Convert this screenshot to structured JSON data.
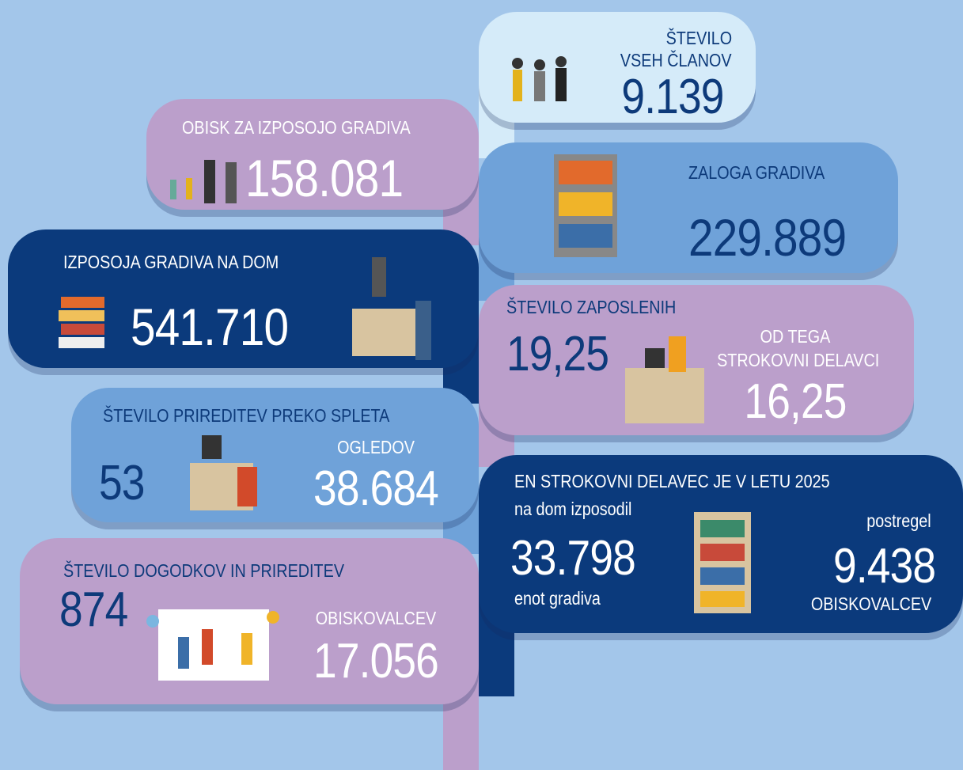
{
  "members": {
    "label_1": "ŠTEVILO",
    "label_2": "VSEH ČLANOV",
    "value": "9.139"
  },
  "visits": {
    "label": "OBISK ZA IZPOSOJO GRADIVA",
    "value": "158.081"
  },
  "stock": {
    "label": "ZALOGA GRADIVA",
    "value": "229.889"
  },
  "loans": {
    "label": "IZPOSOJA GRADIVA NA DOM",
    "value": "541.710"
  },
  "staff": {
    "label": "ŠTEVILO ZAPOSLENIH",
    "value": "19,25",
    "sub_label_1": "OD TEGA",
    "sub_label_2": "STROKOVNI DELAVCI",
    "sub_value": "16,25"
  },
  "online_events": {
    "label": "ŠTEVILO PRIREDITEV PREKO SPLETA",
    "value": "53",
    "views_label": "OGLEDOV",
    "views_value": "38.684"
  },
  "per_staff": {
    "label": "EN STROKOVNI DELAVEC JE V LETU 2025",
    "loans_label": "na dom izposodil",
    "loans_value": "33.798",
    "loans_unit": "enot gradiva",
    "served_label": "postregel",
    "served_value": "9.438",
    "served_unit": "OBISKOVALCEV"
  },
  "events": {
    "label": "ŠTEVILO DOGODKOV IN PRIREDITEV",
    "value": "874",
    "visitors_label": "OBISKOVALCEV",
    "visitors_value": "17.056"
  }
}
